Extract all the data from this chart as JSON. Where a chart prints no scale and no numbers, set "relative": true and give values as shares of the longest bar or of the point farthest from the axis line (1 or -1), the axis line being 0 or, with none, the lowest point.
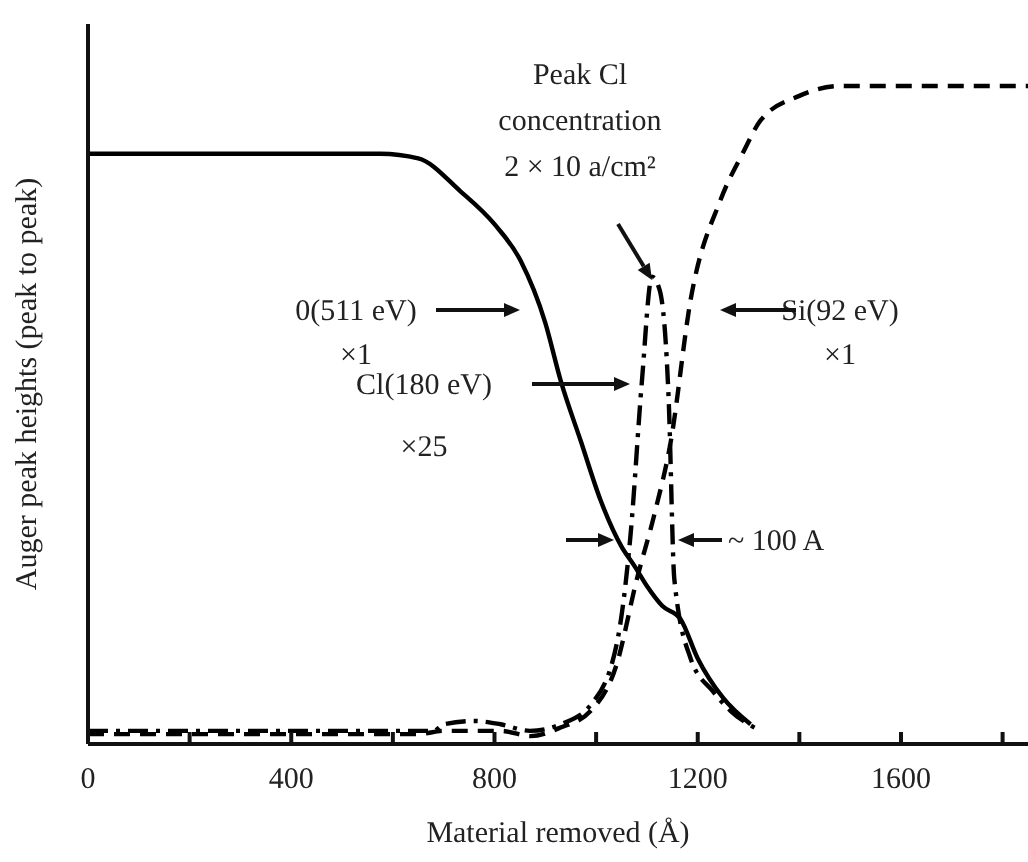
{
  "chart_data": {
    "type": "line",
    "relative": true,
    "xlabel": "Material removed (Å)",
    "ylabel": "Auger peak heights (peak to peak)",
    "xlim": [
      0,
      1850
    ],
    "xticks": [
      0,
      {
        "value": 200,
        "label": null
      },
      400,
      {
        "value": 600,
        "label": null
      },
      800,
      {
        "value": 1000,
        "label": null
      },
      1200,
      {
        "value": 1400,
        "label": null
      },
      1600,
      {
        "value": 1800,
        "label": null
      }
    ],
    "grid": false,
    "marker": "none",
    "series": [
      {
        "color": "#000000",
        "line_style": "solid",
        "x": [
          0,
          575,
          650,
          733,
          800,
          851,
          900,
          930,
          970,
          1009,
          1050,
          1076,
          1100,
          1130,
          1166,
          1200,
          1250,
          1304
        ],
        "values": [
          0.897,
          0.897,
          0.89,
          0.84,
          0.79,
          0.735,
          0.64,
          0.553,
          0.46,
          0.37,
          0.3,
          0.27,
          0.24,
          0.21,
          0.19,
          0.13,
          0.07,
          0.03
        ]
      },
      {
        "color": "#000000",
        "line_style": "dashed",
        "x": [
          0,
          650,
          700,
          760,
          812,
          871,
          930,
          989,
          1040,
          1080,
          1115,
          1147,
          1186,
          1245,
          1290,
          1324,
          1400,
          1481,
          1550,
          1700,
          1850
        ],
        "values": [
          0.015,
          0.015,
          0.02,
          0.02,
          0.02,
          0.012,
          0.025,
          0.05,
          0.12,
          0.25,
          0.35,
          0.46,
          0.675,
          0.827,
          0.9,
          0.948,
          0.985,
          1,
          1,
          1,
          1
        ]
      },
      {
        "color": "#000000",
        "line_style": "dashdot",
        "x": [
          0,
          680,
          700,
          760,
          812,
          870,
          930,
          990,
          1040,
          1068,
          1090,
          1110,
          1125,
          1143,
          1154,
          1186,
          1230,
          1265,
          1324
        ],
        "values": [
          0.02,
          0.02,
          0.03,
          0.035,
          0.03,
          0.02,
          0.03,
          0.06,
          0.15,
          0.32,
          0.55,
          0.71,
          0.69,
          0.52,
          0.25,
          0.13,
          0.08,
          0.05,
          0.02
        ]
      }
    ],
    "annotations": [
      "Peak Cl\nconcentration\n2 × 10 a/cm²",
      "0(511 eV)\n×1",
      "Si(92 eV)\n×1",
      "Cl(180 eV)\n×25",
      "~ 100 A"
    ]
  }
}
